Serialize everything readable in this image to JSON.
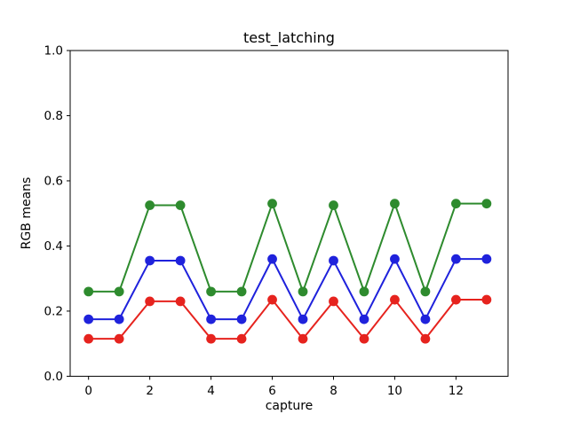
{
  "figure": {
    "background": "#ffffff",
    "axis_color": "#000000",
    "text_color": "#000000"
  },
  "chart_data": {
    "type": "line",
    "title": "test_latching",
    "xlabel": "capture",
    "ylabel": "RGB means",
    "x": [
      0,
      1,
      2,
      3,
      4,
      5,
      6,
      7,
      8,
      9,
      10,
      11,
      12,
      13
    ],
    "series": [
      {
        "name": "red-channel",
        "color": "#e6231e",
        "values": [
          0.115,
          0.115,
          0.23,
          0.23,
          0.115,
          0.115,
          0.235,
          0.115,
          0.23,
          0.115,
          0.235,
          0.115,
          0.235,
          0.235
        ]
      },
      {
        "name": "green-channel",
        "color": "#2e8b2e",
        "values": [
          0.26,
          0.26,
          0.525,
          0.525,
          0.26,
          0.26,
          0.53,
          0.26,
          0.525,
          0.26,
          0.53,
          0.26,
          0.53,
          0.53
        ]
      },
      {
        "name": "blue-channel",
        "color": "#1f22dc",
        "values": [
          0.175,
          0.175,
          0.355,
          0.355,
          0.175,
          0.175,
          0.36,
          0.175,
          0.355,
          0.175,
          0.36,
          0.175,
          0.36,
          0.36
        ]
      }
    ],
    "xlim": [
      -0.6,
      13.7
    ],
    "ylim": [
      0.0,
      1.0
    ],
    "xticks": [
      0,
      2,
      4,
      6,
      8,
      10,
      12
    ],
    "yticks": [
      0.0,
      0.2,
      0.4,
      0.6,
      0.8,
      1.0
    ],
    "ytick_labels": [
      "0.0",
      "0.2",
      "0.4",
      "0.6",
      "0.8",
      "1.0"
    ],
    "grid": false,
    "legend": "none",
    "marker": "o"
  }
}
